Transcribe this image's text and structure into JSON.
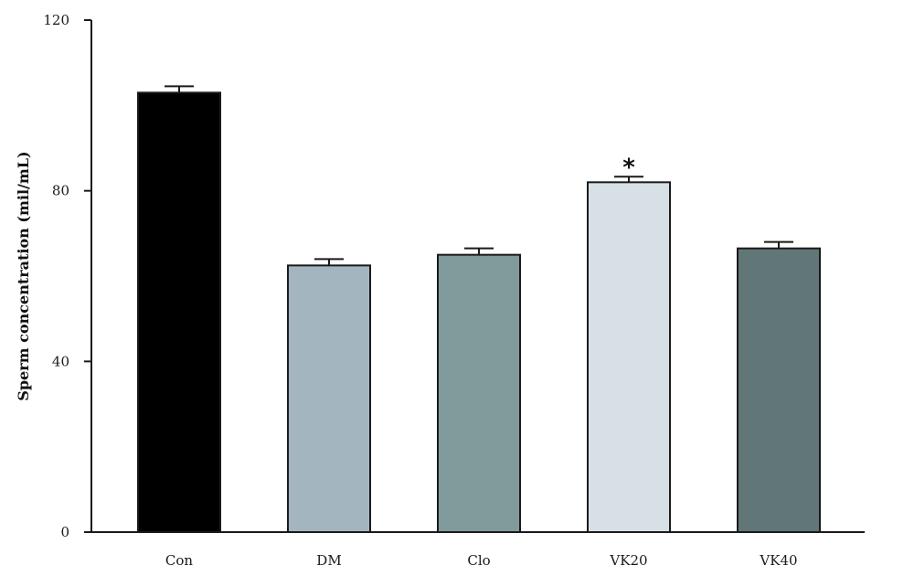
{
  "chart_data": {
    "type": "bar",
    "title": "",
    "xlabel": "",
    "ylabel": "Sperm concentration (mil/mL)",
    "categories": [
      "Con",
      "DM",
      "Clo",
      "VK20",
      "VK40"
    ],
    "values": [
      103,
      62.5,
      65,
      82,
      66.5
    ],
    "errors": [
      1.5,
      1.5,
      1.5,
      1.3,
      1.5
    ],
    "bar_colors": [
      "#000000",
      "#a3b6c0",
      "#819b9c",
      "#d6e0e5",
      "#617677"
    ],
    "annotations": [
      {
        "category": "VK20",
        "text": "*"
      }
    ],
    "ylim": [
      0,
      120
    ],
    "yticks": [
      0,
      40,
      80,
      120
    ],
    "grid": false,
    "legend": "none"
  }
}
